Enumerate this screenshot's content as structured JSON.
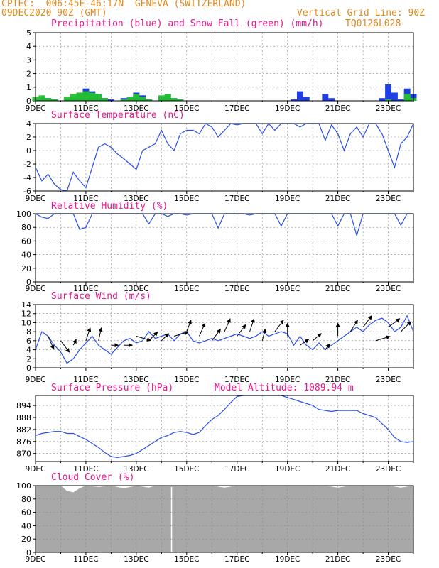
{
  "header": {
    "line1": "CPTEC:  006:45E-46:17N  GENEVA (SWITZERLAND)",
    "line2_left": "09DEC2020 90Z (GMT)",
    "line2_right": "Vertical Grid Line: 90Z",
    "code": "TQ0126L028",
    "altitude_label": "Model Altitude: 1089.94 m"
  },
  "colors": {
    "header_text": "#e08a1e",
    "panel_title": "#e8168c",
    "precip": "#1f3fe0",
    "snow": "#22c42a",
    "line": "#2a4fe8",
    "cloud": "#a8a8a8",
    "arrow": "#000000"
  },
  "x_tick_labels": [
    "9DEC",
    "11DEC",
    "13DEC",
    "15DEC",
    "17DEC",
    "19DEC",
    "21DEC",
    "23DEC"
  ],
  "chart_data": [
    {
      "type": "bar",
      "title": "Precipitation (blue) and Snow Fall (green) (mm/h)",
      "ylim": [
        0,
        5
      ],
      "yticks": [
        "0",
        "1",
        "2",
        "3",
        "4",
        "5"
      ],
      "x_days": [
        0.0,
        0.25,
        0.5,
        0.75,
        1.0,
        1.25,
        1.5,
        1.75,
        2.0,
        2.25,
        2.5,
        2.75,
        3.0,
        3.25,
        3.5,
        3.75,
        4.0,
        4.25,
        4.5,
        4.75,
        5.0,
        5.25,
        5.5,
        5.75,
        6.0,
        6.25,
        6.5,
        6.75,
        7.0,
        7.25,
        7.5,
        7.75,
        8.0,
        8.25,
        8.5,
        8.75,
        9.0,
        9.25,
        9.5,
        9.75,
        10.0,
        10.25,
        10.5,
        10.75,
        11.0,
        11.25,
        11.5,
        11.75,
        12.0,
        12.25,
        12.5,
        12.75,
        13.0,
        13.25,
        13.5,
        13.75,
        14.0,
        14.25,
        14.5,
        14.75,
        15.0
      ],
      "series": [
        {
          "name": "Precipitation (blue)",
          "values": [
            0.1,
            0.3,
            0.2,
            0.1,
            0.0,
            0.1,
            0.3,
            0.6,
            0.9,
            0.7,
            0.5,
            0.2,
            0.1,
            0.0,
            0.2,
            0.3,
            0.6,
            0.4,
            0.1,
            0.0,
            0.3,
            0.5,
            0.2,
            0.1,
            0.0,
            0.0,
            0.0,
            0.0,
            0.0,
            0.0,
            0.0,
            0.0,
            0.0,
            0.0,
            0.0,
            0.0,
            0.0,
            0.0,
            0.0,
            0.0,
            0.0,
            0.1,
            0.7,
            0.3,
            0.0,
            0.0,
            0.5,
            0.2,
            0.0,
            0.0,
            0.0,
            0.0,
            0.0,
            0.0,
            0.0,
            0.2,
            1.2,
            0.6,
            0.1,
            0.9,
            0.5
          ]
        },
        {
          "name": "Snow Fall (green)",
          "values": [
            0.3,
            0.4,
            0.2,
            0.1,
            0.0,
            0.3,
            0.5,
            0.6,
            0.7,
            0.6,
            0.5,
            0.2,
            0.0,
            0.0,
            0.1,
            0.3,
            0.5,
            0.3,
            0.1,
            0.0,
            0.4,
            0.5,
            0.2,
            0.1,
            0.0,
            0.0,
            0.0,
            0.0,
            0.0,
            0.0,
            0.0,
            0.0,
            0.0,
            0.0,
            0.0,
            0.0,
            0.0,
            0.0,
            0.0,
            0.0,
            0.0,
            0.0,
            0.0,
            0.0,
            0.0,
            0.0,
            0.0,
            0.0,
            0.0,
            0.0,
            0.0,
            0.0,
            0.0,
            0.0,
            0.0,
            0.0,
            0.1,
            0.0,
            0.0,
            0.5,
            0.2
          ]
        }
      ]
    },
    {
      "type": "line",
      "title": "Surface Temperature (nC)",
      "ylim": [
        -6,
        4
      ],
      "yticks": [
        "-6",
        "-4",
        "-2",
        "0",
        "2",
        "4"
      ],
      "x_days": [
        0.0,
        0.25,
        0.5,
        0.75,
        1.0,
        1.25,
        1.5,
        1.75,
        2.0,
        2.25,
        2.5,
        2.75,
        3.0,
        3.25,
        3.5,
        3.75,
        4.0,
        4.25,
        4.5,
        4.75,
        5.0,
        5.25,
        5.5,
        5.75,
        6.0,
        6.25,
        6.5,
        6.75,
        7.0,
        7.25,
        7.5,
        7.75,
        8.0,
        8.25,
        8.5,
        8.75,
        9.0,
        9.25,
        9.5,
        9.75,
        10.0,
        10.25,
        10.5,
        10.75,
        11.0,
        11.25,
        11.5,
        11.75,
        12.0,
        12.25,
        12.5,
        12.75,
        13.0,
        13.25,
        13.5,
        13.75,
        14.0,
        14.25,
        14.5,
        14.75,
        15.0
      ],
      "values": [
        -2.5,
        -4.5,
        -3.5,
        -5.0,
        -5.8,
        -6.0,
        -3.2,
        -4.5,
        -5.5,
        -2.5,
        0.5,
        1.0,
        0.5,
        -0.5,
        -1.2,
        -2.0,
        -2.8,
        0.0,
        0.5,
        1.0,
        3.0,
        1.0,
        0.0,
        2.5,
        3.0,
        3.0,
        2.5,
        4.0,
        3.5,
        2.0,
        3.0,
        4.0,
        3.8,
        4.0,
        4.0,
        4.0,
        2.5,
        4.0,
        3.0,
        4.0,
        4.0,
        4.0,
        3.5,
        4.0,
        4.0,
        4.0,
        1.5,
        3.8,
        2.5,
        0.0,
        2.5,
        3.5,
        2.0,
        4.0,
        4.0,
        2.5,
        0.0,
        -2.5,
        1.0,
        2.0,
        4.0
      ]
    },
    {
      "type": "line",
      "title": "Relative Humidity (%)",
      "ylim": [
        0,
        100
      ],
      "yticks": [
        "0",
        "20",
        "40",
        "60",
        "80",
        "100"
      ],
      "x_days": [
        0.0,
        0.25,
        0.5,
        0.75,
        1.0,
        1.25,
        1.5,
        1.75,
        2.0,
        2.25,
        2.5,
        2.75,
        3.0,
        3.25,
        3.5,
        3.75,
        4.0,
        4.25,
        4.5,
        4.75,
        5.0,
        5.25,
        5.5,
        5.75,
        6.0,
        6.25,
        6.5,
        6.75,
        7.0,
        7.25,
        7.5,
        7.75,
        8.0,
        8.25,
        8.5,
        8.75,
        9.0,
        9.25,
        9.5,
        9.75,
        10.0,
        10.25,
        10.5,
        10.75,
        11.0,
        11.25,
        11.5,
        11.75,
        12.0,
        12.25,
        12.5,
        12.75,
        13.0,
        13.25,
        13.5,
        13.75,
        14.0,
        14.25,
        14.5,
        14.75,
        15.0
      ],
      "values": [
        100,
        95,
        93,
        100,
        100,
        100,
        100,
        77,
        80,
        100,
        100,
        100,
        100,
        100,
        100,
        100,
        100,
        100,
        85,
        100,
        100,
        96,
        100,
        100,
        98,
        100,
        100,
        100,
        100,
        79,
        100,
        100,
        100,
        100,
        98,
        100,
        100,
        100,
        100,
        82,
        100,
        100,
        100,
        100,
        100,
        100,
        100,
        100,
        82,
        100,
        100,
        68,
        100,
        100,
        100,
        100,
        100,
        100,
        83,
        100,
        100
      ]
    },
    {
      "type": "line",
      "title": "Surface Wind (m/s)",
      "ylim": [
        0,
        14
      ],
      "yticks": [
        "0",
        "2",
        "4",
        "6",
        "8",
        "10",
        "12",
        "14"
      ],
      "x_days": [
        0.0,
        0.25,
        0.5,
        0.75,
        1.0,
        1.25,
        1.5,
        1.75,
        2.0,
        2.25,
        2.5,
        2.75,
        3.0,
        3.25,
        3.5,
        3.75,
        4.0,
        4.25,
        4.5,
        4.75,
        5.0,
        5.25,
        5.5,
        5.75,
        6.0,
        6.25,
        6.5,
        6.75,
        7.0,
        7.25,
        7.5,
        7.75,
        8.0,
        8.25,
        8.5,
        8.75,
        9.0,
        9.25,
        9.5,
        9.75,
        10.0,
        10.25,
        10.5,
        10.75,
        11.0,
        11.25,
        11.5,
        11.75,
        12.0,
        12.25,
        12.5,
        12.75,
        13.0,
        13.25,
        13.5,
        13.75,
        14.0,
        14.25,
        14.5,
        14.75,
        15.0
      ],
      "values": [
        4.0,
        8.0,
        7.0,
        5.0,
        3.5,
        1.0,
        2.0,
        4.0,
        5.5,
        7.0,
        5.0,
        4.0,
        3.0,
        4.5,
        6.0,
        6.5,
        5.5,
        6.0,
        8.0,
        6.5,
        7.0,
        7.5,
        6.0,
        7.5,
        8.0,
        6.0,
        5.5,
        6.0,
        6.5,
        6.0,
        6.5,
        7.0,
        7.5,
        7.0,
        6.5,
        7.0,
        8.0,
        7.0,
        7.5,
        8.0,
        7.5,
        5.0,
        7.0,
        5.0,
        4.0,
        5.5,
        4.0,
        5.0,
        6.0,
        7.0,
        8.0,
        9.0,
        8.0,
        9.5,
        10.5,
        11.0,
        10.0,
        8.0,
        9.0,
        11.5,
        8.0
      ]
    },
    {
      "type": "line",
      "title": "Surface Pressure (hPa)",
      "yticks": [
        "870",
        "876",
        "882",
        "888",
        "894"
      ],
      "ylim": [
        866,
        899
      ],
      "x_days": [
        0.0,
        0.25,
        0.5,
        0.75,
        1.0,
        1.25,
        1.5,
        1.75,
        2.0,
        2.25,
        2.5,
        2.75,
        3.0,
        3.25,
        3.5,
        3.75,
        4.0,
        4.25,
        4.5,
        4.75,
        5.0,
        5.25,
        5.5,
        5.75,
        6.0,
        6.25,
        6.5,
        6.75,
        7.0,
        7.25,
        7.5,
        7.75,
        8.0,
        8.25,
        8.5,
        8.75,
        9.0,
        9.25,
        9.5,
        9.75,
        10.0,
        10.25,
        10.5,
        10.75,
        11.0,
        11.25,
        11.5,
        11.75,
        12.0,
        12.25,
        12.5,
        12.75,
        13.0,
        13.25,
        13.5,
        13.75,
        14.0,
        14.25,
        14.5,
        14.75,
        15.0
      ],
      "values": [
        879,
        880,
        880.5,
        881,
        881,
        880,
        880,
        878.5,
        877,
        875,
        873,
        870.5,
        868.5,
        868,
        868.5,
        869,
        870,
        872,
        874,
        876,
        878,
        879,
        880.5,
        881,
        880.5,
        879.5,
        880.5,
        884,
        887,
        889,
        892,
        895.5,
        898.5,
        899,
        899,
        899,
        899,
        899,
        899,
        899,
        898,
        897,
        896,
        895,
        894,
        892,
        891.5,
        891,
        891.5,
        891.5,
        891.5,
        891.5,
        890,
        889,
        888,
        885,
        882,
        878,
        876,
        875.5,
        876
      ]
    },
    {
      "type": "area",
      "title": "Cloud Cover (%)",
      "ylim": [
        0,
        100
      ],
      "yticks": [
        "0",
        "20",
        "40",
        "60",
        "80",
        "100"
      ],
      "x_days": [
        0.0,
        0.5,
        1.0,
        1.25,
        1.5,
        1.75,
        2.0,
        2.5,
        3.0,
        3.5,
        4.0,
        4.5,
        4.75,
        5.0,
        5.5,
        6.0,
        6.5,
        7.0,
        7.5,
        8.0,
        8.5,
        9.0,
        9.5,
        10.0,
        10.5,
        11.0,
        11.5,
        12.0,
        12.5,
        13.0,
        13.5,
        14.0,
        14.5,
        15.0
      ],
      "values": [
        100,
        100,
        100,
        92,
        90,
        96,
        100,
        98,
        100,
        96,
        100,
        97,
        100,
        100,
        100,
        100,
        100,
        100,
        97,
        100,
        100,
        100,
        100,
        100,
        100,
        100,
        100,
        97,
        100,
        100,
        100,
        100,
        97,
        100
      ]
    }
  ],
  "wind_arrows": {
    "x_days": [
      0.5,
      1.0,
      1.5,
      2.0,
      2.5,
      3.0,
      3.5,
      4.0,
      4.5,
      5.0,
      5.5,
      6.0,
      6.5,
      7.0,
      7.5,
      8.0,
      8.5,
      9.0,
      9.5,
      10.0,
      10.5,
      11.0,
      11.5,
      12.0,
      12.5,
      13.0,
      13.5,
      14.0,
      14.5
    ],
    "u": [
      0.4,
      0.6,
      0.2,
      0.3,
      0.2,
      0.5,
      0.6,
      1.0,
      0.6,
      0.5,
      1.0,
      0.3,
      0.4,
      0.6,
      0.4,
      0.6,
      0.3,
      0.2,
      0.6,
      0.0,
      0.6,
      0.6,
      0.3,
      0.0,
      0.5,
      0.6,
      1.0,
      0.8,
      0.7
    ],
    "v": [
      -0.9,
      -0.8,
      0.4,
      0.9,
      0.9,
      0.0,
      0.0,
      -0.3,
      0.6,
      0.5,
      0.3,
      0.8,
      0.9,
      0.8,
      0.9,
      0.8,
      0.9,
      0.8,
      0.8,
      0.9,
      0.4,
      0.5,
      0.4,
      0.9,
      0.8,
      0.8,
      0.3,
      0.6,
      0.7
    ],
    "speed": [
      7,
      6,
      5,
      6,
      6,
      5,
      5,
      7,
      6,
      6,
      7,
      8,
      7,
      6,
      8,
      7,
      8,
      6,
      8,
      7,
      5,
      6,
      4,
      7,
      8,
      9,
      6,
      9,
      8
    ]
  }
}
